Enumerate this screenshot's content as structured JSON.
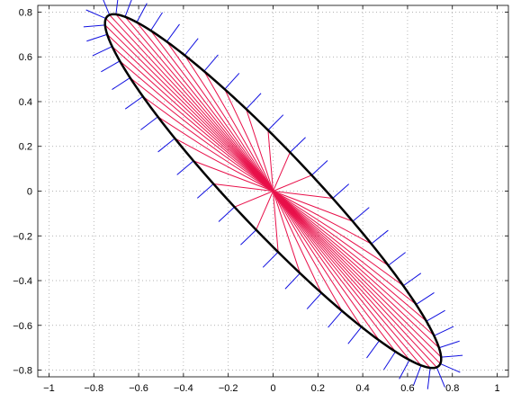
{
  "chart_data": {
    "type": "line",
    "title": "",
    "xlabel": "",
    "ylabel": "",
    "xlim": [
      -1.05,
      1.05
    ],
    "ylim": [
      -0.83,
      0.83
    ],
    "grid": true,
    "xticks": [
      -1,
      -0.8,
      -0.6,
      -0.4,
      -0.2,
      0,
      0.2,
      0.4,
      0.6,
      0.8,
      1
    ],
    "xtick_labels": [
      "−1",
      "−0.8",
      "−0.6",
      "−0.4",
      "−0.2",
      "0",
      "0.2",
      "0.4",
      "0.6",
      "0.8",
      "1"
    ],
    "yticks": [
      -0.8,
      -0.6,
      -0.4,
      -0.2,
      0,
      0.2,
      0.4,
      0.6,
      0.8
    ],
    "ytick_labels": [
      "−0.8",
      "−0.6",
      "−0.4",
      "−0.2",
      "0",
      "0.2",
      "0.4",
      "0.6",
      "0.8"
    ],
    "ellipse": {
      "center": [
        0,
        0
      ],
      "description": "rotated ellipse, leftmost x≈-0.75, top y≈0.75",
      "x_extent": [
        -0.75,
        0.75
      ],
      "y_extent": [
        -0.75,
        0.75
      ]
    },
    "ray_count": 48,
    "colors": {
      "ellipse": "#000000",
      "rays": "#e8104a",
      "normals": "#1010e0",
      "grid": "#9a9a9a"
    }
  }
}
